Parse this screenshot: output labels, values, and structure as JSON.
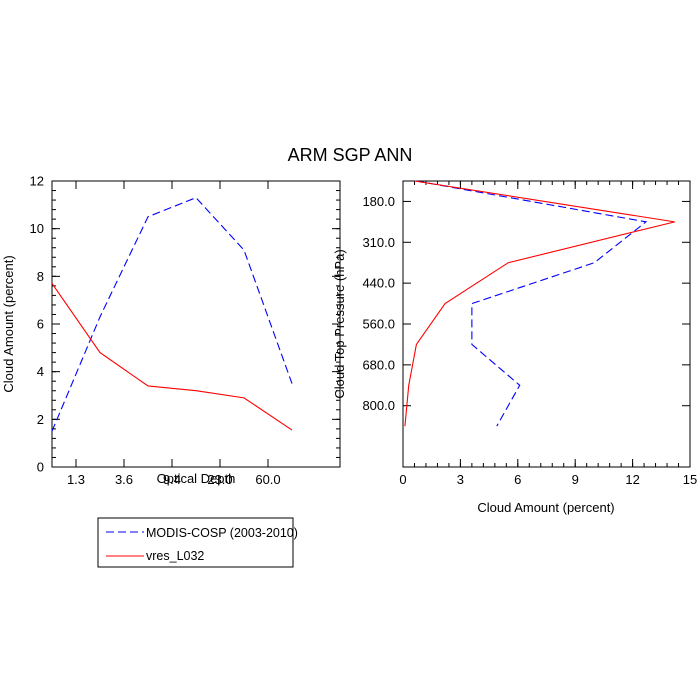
{
  "title": "ARM SGP ANN",
  "colors": {
    "modis": "#0000ff",
    "model": "#ff0000",
    "axis": "#000000"
  },
  "chart_data": [
    {
      "type": "line",
      "xlabel": "Optical Depth",
      "ylabel": "Cloud Amount (percent)",
      "ylim": [
        0,
        12
      ],
      "y_major_ticks": [
        0,
        2,
        4,
        6,
        8,
        10,
        12
      ],
      "y_minor_step": 0.4,
      "x_index_range": [
        0,
        6
      ],
      "x_ticks": [
        {
          "pos": 0.5,
          "label": "1.3"
        },
        {
          "pos": 1.5,
          "label": "3.6"
        },
        {
          "pos": 2.5,
          "label": "9.4"
        },
        {
          "pos": 3.5,
          "label": "23.0"
        },
        {
          "pos": 4.5,
          "label": "60.0"
        }
      ],
      "series": [
        {
          "name": "MODIS-COSP (2003-2010)",
          "style": "dashed",
          "color": "#0000ff",
          "x": [
            0,
            1,
            2,
            3,
            4,
            5
          ],
          "values": [
            1.5,
            6.3,
            10.5,
            11.3,
            9.1,
            3.5
          ]
        },
        {
          "name": "vres_L032",
          "style": "solid",
          "color": "#ff0000",
          "x": [
            0,
            1,
            2,
            3,
            4,
            5
          ],
          "values": [
            7.7,
            4.8,
            3.4,
            3.2,
            2.9,
            1.55
          ]
        }
      ]
    },
    {
      "type": "line",
      "xlabel": "Cloud Amount (percent)",
      "ylabel": "Cloud Top Pressure (hPa)",
      "xlim": [
        0,
        15
      ],
      "x_major_ticks": [
        0,
        3,
        6,
        9,
        12,
        15
      ],
      "x_minor_step": 0.6,
      "y_index_range": [
        0,
        7
      ],
      "y_ticks": [
        {
          "pos": 0.5,
          "label": "180.0"
        },
        {
          "pos": 1.5,
          "label": "310.0"
        },
        {
          "pos": 2.5,
          "label": "440.0"
        },
        {
          "pos": 3.5,
          "label": "560.0"
        },
        {
          "pos": 4.5,
          "label": "680.0"
        },
        {
          "pos": 5.5,
          "label": "800.0"
        }
      ],
      "series": [
        {
          "name": "MODIS-COSP (2003-2010)",
          "style": "dashed",
          "color": "#0000ff",
          "y": [
            0,
            1,
            2,
            3,
            4,
            5,
            6
          ],
          "values": [
            0.7,
            12.7,
            10,
            3.6,
            3.6,
            6.1,
            4.9
          ]
        },
        {
          "name": "vres_L032",
          "style": "solid",
          "color": "#ff0000",
          "y": [
            0,
            1,
            2,
            3,
            4,
            5,
            6
          ],
          "values": [
            0.6,
            14.2,
            5.5,
            2.2,
            0.7,
            0.3,
            0.1
          ]
        }
      ]
    }
  ],
  "legend": {
    "items": [
      {
        "label": "MODIS-COSP (2003-2010)",
        "style": "dashed",
        "color": "#0000ff"
      },
      {
        "label": "vres_L032",
        "style": "solid",
        "color": "#ff0000"
      }
    ]
  }
}
